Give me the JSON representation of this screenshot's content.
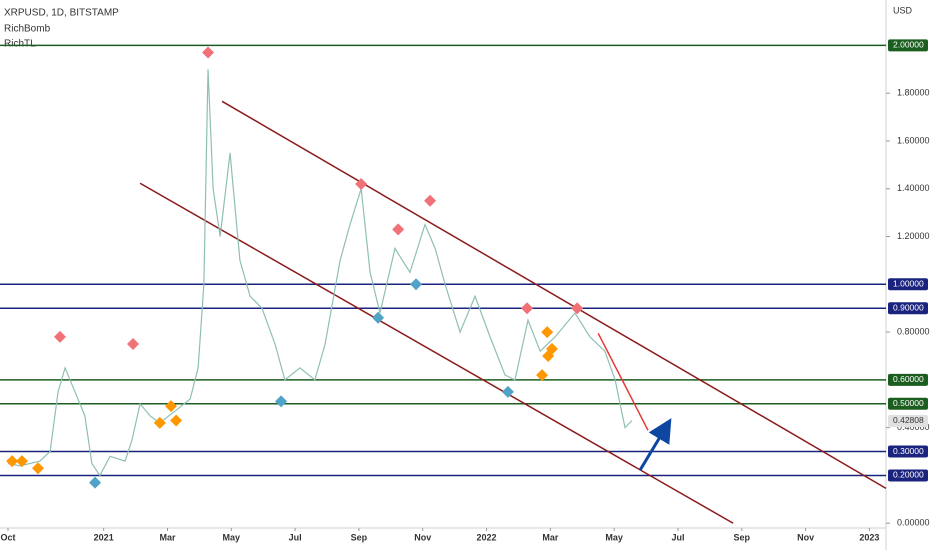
{
  "chart_data": {
    "type": "line",
    "title": "XRPUSD, 1D, BITSTAMP",
    "indicators": [
      "RichBomb",
      "RichTL"
    ],
    "axis_unit": "USD",
    "color": "#8fbfb4",
    "x": [
      0,
      0.38,
      1.0,
      1.32,
      1.57,
      1.79,
      2.1,
      2.41,
      2.63,
      2.88,
      3.2,
      3.67,
      3.89,
      4.14,
      4.45,
      4.76,
      5.24,
      5.71,
      5.96,
      6.14,
      6.27,
      6.43,
      6.65,
      6.96,
      7.27,
      7.59,
      7.96,
      8.37,
      8.68,
      9.15,
      9.62,
      9.94,
      10.41,
      10.72,
      11.07,
      11.35,
      11.66,
      12.13,
      12.6,
      13.07,
      13.39,
      13.7,
      14.17,
      14.64,
      15.11,
      15.58,
      15.89,
      16.3,
      16.68,
      17.15,
      17.77,
      18.24,
      18.71,
      19.03,
      19.34,
      19.56
    ],
    "values": [
      0.25,
      0.24,
      0.26,
      0.3,
      0.55,
      0.65,
      0.55,
      0.45,
      0.25,
      0.2,
      0.28,
      0.26,
      0.35,
      0.5,
      0.45,
      0.42,
      0.47,
      0.52,
      0.65,
      1.0,
      1.9,
      1.4,
      1.2,
      1.55,
      1.1,
      0.95,
      0.9,
      0.75,
      0.6,
      0.65,
      0.6,
      0.75,
      1.1,
      1.25,
      1.4,
      1.05,
      0.88,
      1.15,
      1.05,
      1.25,
      1.15,
      1.0,
      0.8,
      0.95,
      0.78,
      0.62,
      0.6,
      0.85,
      0.72,
      0.78,
      0.88,
      0.78,
      0.72,
      0.6,
      0.4,
      0.43
    ],
    "xlim": [
      -0.25,
      27.52
    ],
    "xticks": [
      {
        "value": 0,
        "label": "Oct"
      },
      {
        "value": 3,
        "label": "2021"
      },
      {
        "value": 5,
        "label": "Mar"
      },
      {
        "value": 7,
        "label": "May"
      },
      {
        "value": 9,
        "label": "Jul"
      },
      {
        "value": 11,
        "label": "Sep"
      },
      {
        "value": 13,
        "label": "Nov"
      },
      {
        "value": 15,
        "label": "2022"
      },
      {
        "value": 17,
        "label": "Mar"
      },
      {
        "value": 19,
        "label": "May"
      },
      {
        "value": 21,
        "label": "Jul"
      },
      {
        "value": 23,
        "label": "Sep"
      },
      {
        "value": 25,
        "label": "Nov"
      },
      {
        "value": 27,
        "label": "2023"
      }
    ],
    "ylim": [
      -0.02,
      2.19
    ],
    "yticks": [
      {
        "value": 0,
        "label": "0.00000"
      },
      {
        "value": 0.4,
        "label": "0.40000"
      },
      {
        "value": 0.8,
        "label": "0.80000"
      },
      {
        "value": 1.2,
        "label": "1.20000"
      },
      {
        "value": 1.4,
        "label": "1.40000"
      },
      {
        "value": 1.6,
        "label": "1.60000"
      },
      {
        "value": 1.8,
        "label": "1.80000"
      }
    ],
    "levels": [
      {
        "value": 2.0,
        "label": "2.00000",
        "color": "#1b5e20"
      },
      {
        "value": 1.0,
        "label": "1.00000",
        "color": "#1a237e"
      },
      {
        "value": 0.9,
        "label": "0.90000",
        "color": "#1a237e"
      },
      {
        "value": 0.6,
        "label": "0.60000",
        "color": "#1b5e20"
      },
      {
        "value": 0.5,
        "label": "0.50000",
        "color": "#1b5e20"
      },
      {
        "value": 0.3,
        "label": "0.30000",
        "color": "#1a237e"
      },
      {
        "value": 0.2,
        "label": "0.20000",
        "color": "#1a237e"
      }
    ],
    "last_price": 0.42808,
    "markers": [
      {
        "x": 1.63,
        "y": 0.78,
        "color": "#f07178"
      },
      {
        "x": 3.92,
        "y": 0.75,
        "color": "#f07178"
      },
      {
        "x": 6.27,
        "y": 1.97,
        "color": "#f07178"
      },
      {
        "x": 11.07,
        "y": 1.42,
        "color": "#f07178"
      },
      {
        "x": 12.23,
        "y": 1.23,
        "color": "#f07178"
      },
      {
        "x": 13.23,
        "y": 1.35,
        "color": "#f07178"
      },
      {
        "x": 16.27,
        "y": 0.9,
        "color": "#f07178"
      },
      {
        "x": 17.84,
        "y": 0.9,
        "color": "#f07178"
      },
      {
        "x": 2.73,
        "y": 0.17,
        "color": "#4fa3c7"
      },
      {
        "x": 8.56,
        "y": 0.51,
        "color": "#4fa3c7"
      },
      {
        "x": 11.6,
        "y": 0.86,
        "color": "#4fa3c7"
      },
      {
        "x": 12.79,
        "y": 1.0,
        "color": "#4fa3c7"
      },
      {
        "x": 15.67,
        "y": 0.55,
        "color": "#4fa3c7"
      },
      {
        "x": 0.13,
        "y": 0.26,
        "color": "#ff9800"
      },
      {
        "x": 0.44,
        "y": 0.26,
        "color": "#ff9800"
      },
      {
        "x": 0.94,
        "y": 0.23,
        "color": "#ff9800"
      },
      {
        "x": 4.76,
        "y": 0.42,
        "color": "#ff9800"
      },
      {
        "x": 5.11,
        "y": 0.49,
        "color": "#ff9800"
      },
      {
        "x": 5.27,
        "y": 0.43,
        "color": "#ff9800"
      },
      {
        "x": 16.74,
        "y": 0.62,
        "color": "#ff9800"
      },
      {
        "x": 16.9,
        "y": 0.8,
        "color": "#ff9800"
      },
      {
        "x": 17.05,
        "y": 0.73,
        "color": "#ff9800"
      },
      {
        "x": 16.93,
        "y": 0.7,
        "color": "#ff9800"
      }
    ],
    "trendlines": [
      {
        "x": [
          6.71,
          27.52
        ],
        "y": [
          1.766,
          0.146
        ],
        "color": "#8b1a1a"
      },
      {
        "x": [
          4.14,
          22.73
        ],
        "y": [
          1.423,
          0
        ],
        "color": "#8b1a1a"
      },
      {
        "x": [
          18.5,
          20.06
        ],
        "y": [
          0.795,
          0.389
        ],
        "color": "#e53935"
      }
    ],
    "arrow": {
      "x": [
        19.81,
        20.6
      ],
      "y": [
        0.222,
        0.397
      ],
      "color": "#0d47a1"
    }
  }
}
